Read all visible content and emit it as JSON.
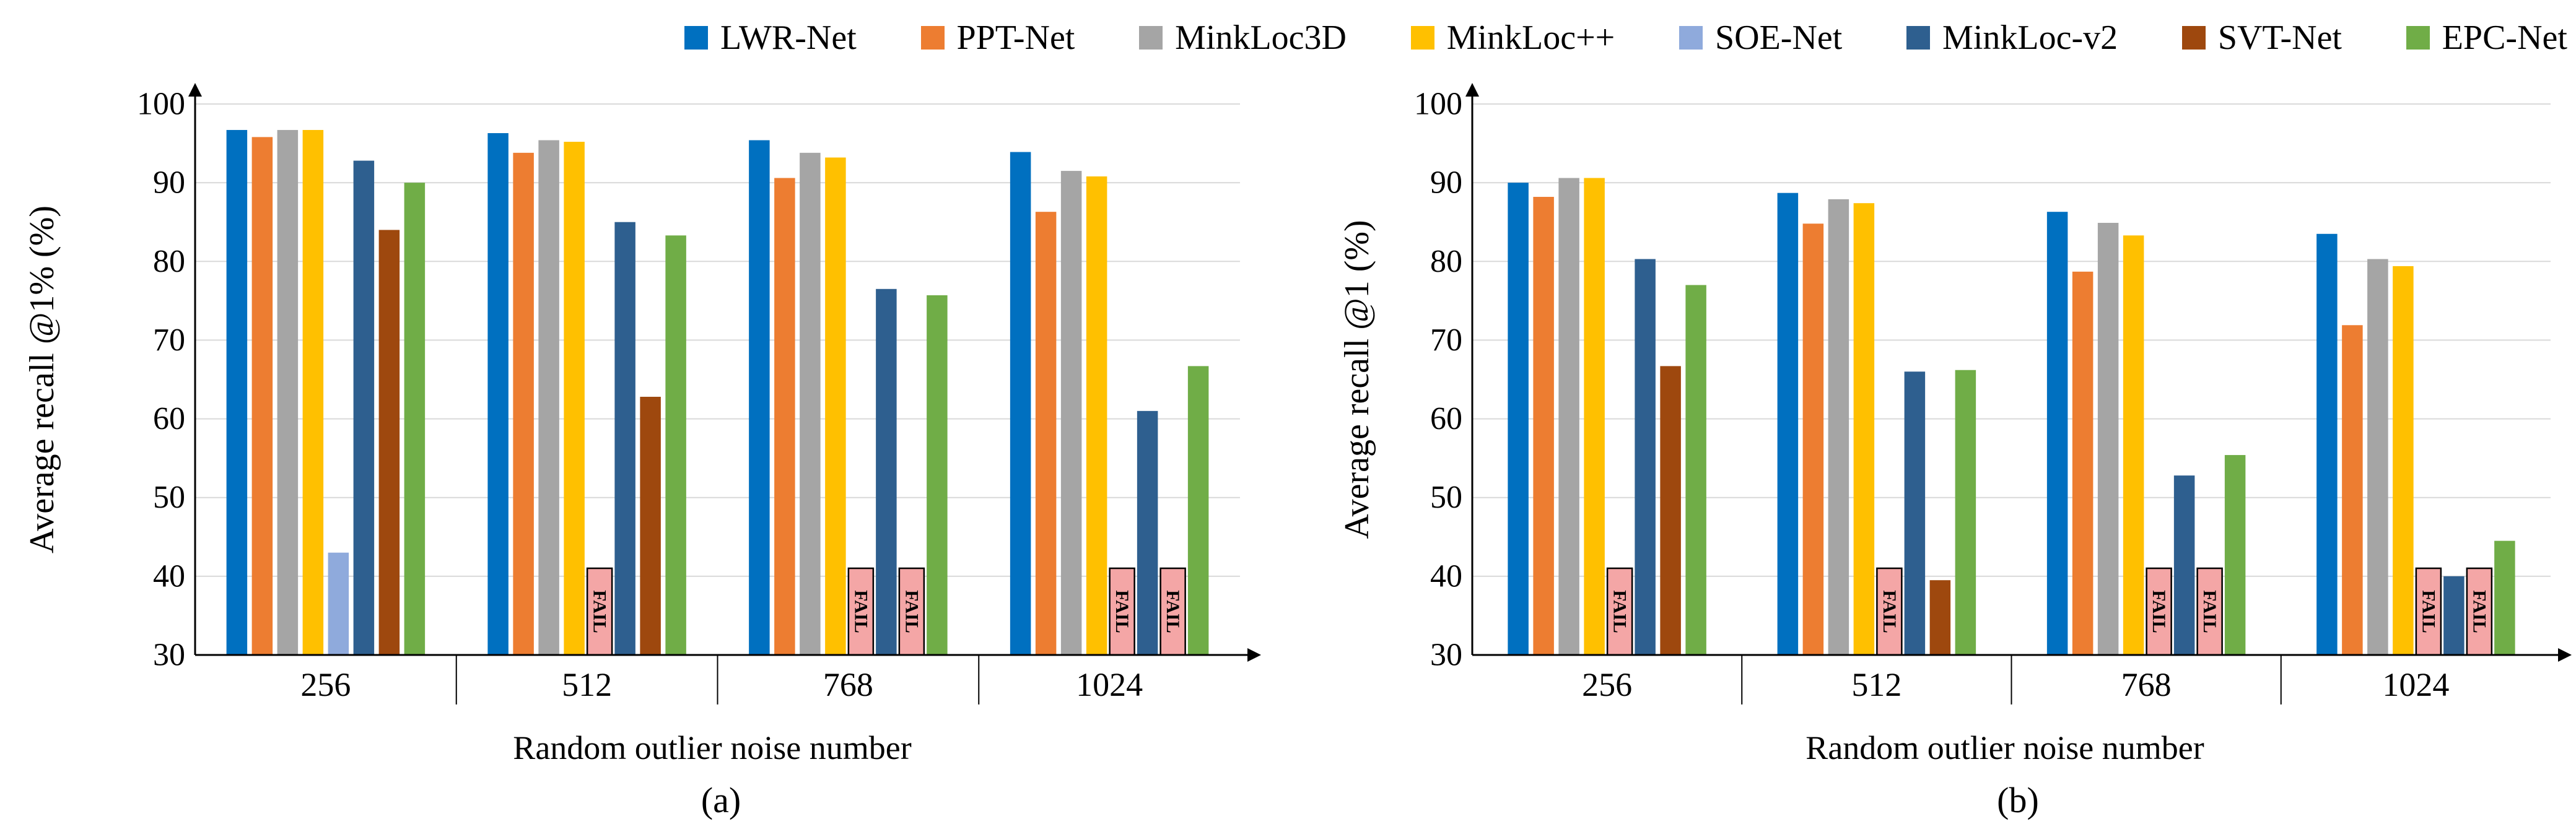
{
  "legend": [
    {
      "name": "LWR-Net",
      "color": "#0070C0"
    },
    {
      "name": "PPT-Net",
      "color": "#ED7D31"
    },
    {
      "name": "MinkLoc3D",
      "color": "#A5A5A5"
    },
    {
      "name": "MinkLoc++",
      "color": "#FFC000"
    },
    {
      "name": "SOE-Net",
      "color": "#8FAADC"
    },
    {
      "name": "MinkLoc-v2",
      "color": "#2E5F8F"
    },
    {
      "name": "SVT-Net",
      "color": "#9E480E"
    },
    {
      "name": "EPC-Net",
      "color": "#70AD47"
    }
  ],
  "fail_label": "FAIL",
  "chart_data": [
    {
      "type": "bar",
      "panel_label": "(a)",
      "title": "",
      "xlabel": "Random outlier noise number",
      "ylabel": "Average recall @1% (%)",
      "ylim": [
        30,
        100
      ],
      "yticks": [
        30,
        40,
        50,
        60,
        70,
        80,
        90,
        100
      ],
      "grid": true,
      "categories": [
        "256",
        "512",
        "768",
        "1024"
      ],
      "series": [
        {
          "name": "LWR-Net",
          "values": [
            96.7,
            96.3,
            95.4,
            93.9
          ]
        },
        {
          "name": "PPT-Net",
          "values": [
            95.8,
            93.8,
            90.6,
            86.3
          ]
        },
        {
          "name": "MinkLoc3D",
          "values": [
            96.7,
            95.4,
            93.8,
            91.5
          ]
        },
        {
          "name": "MinkLoc++",
          "values": [
            96.7,
            95.2,
            93.2,
            90.8
          ]
        },
        {
          "name": "SOE-Net",
          "values": [
            43.0,
            null,
            null,
            null
          ],
          "fail": [
            false,
            true,
            true,
            true
          ]
        },
        {
          "name": "MinkLoc-v2",
          "values": [
            92.8,
            85.0,
            76.5,
            61.0
          ]
        },
        {
          "name": "SVT-Net",
          "values": [
            84.0,
            62.8,
            null,
            null
          ],
          "fail": [
            false,
            false,
            true,
            true
          ]
        },
        {
          "name": "EPC-Net",
          "values": [
            90.0,
            83.3,
            75.7,
            66.7
          ]
        }
      ]
    },
    {
      "type": "bar",
      "panel_label": "(b)",
      "title": "",
      "xlabel": "Random outlier noise number",
      "ylabel": "Average recall @1 (%)",
      "ylim": [
        30,
        100
      ],
      "yticks": [
        30,
        40,
        50,
        60,
        70,
        80,
        90,
        100
      ],
      "grid": true,
      "categories": [
        "256",
        "512",
        "768",
        "1024"
      ],
      "series": [
        {
          "name": "LWR-Net",
          "values": [
            90.0,
            88.7,
            86.3,
            83.5
          ]
        },
        {
          "name": "PPT-Net",
          "values": [
            88.2,
            84.8,
            78.7,
            71.9
          ]
        },
        {
          "name": "MinkLoc3D",
          "values": [
            90.6,
            87.9,
            84.9,
            80.3
          ]
        },
        {
          "name": "MinkLoc++",
          "values": [
            90.6,
            87.4,
            83.3,
            79.4
          ]
        },
        {
          "name": "SOE-Net",
          "values": [
            null,
            null,
            null,
            null
          ],
          "fail": [
            true,
            true,
            true,
            true
          ]
        },
        {
          "name": "MinkLoc-v2",
          "values": [
            80.3,
            66.0,
            52.8,
            40.0
          ]
        },
        {
          "name": "SVT-Net",
          "values": [
            66.7,
            39.5,
            null,
            null
          ],
          "fail": [
            false,
            false,
            true,
            true
          ]
        },
        {
          "name": "EPC-Net",
          "values": [
            77.0,
            66.2,
            55.4,
            44.5
          ]
        }
      ]
    }
  ]
}
